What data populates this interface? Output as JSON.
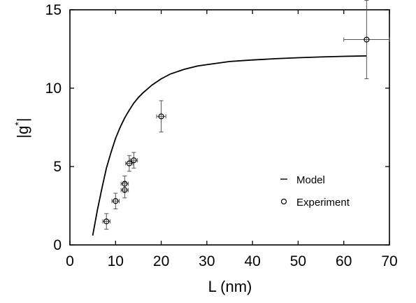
{
  "chart_data": {
    "type": "scatter",
    "xlabel": "L (nm)",
    "ylabel": "|g*|",
    "ylabel_parts": {
      "open": "|g",
      "sup": "*",
      "close": "|"
    },
    "xlim": [
      0,
      70
    ],
    "ylim": [
      0,
      15
    ],
    "xticks": [
      0,
      10,
      20,
      30,
      40,
      50,
      60,
      70
    ],
    "yticks": [
      0,
      5,
      10,
      15
    ],
    "grid": false,
    "legend_position": "lower-right",
    "series": [
      {
        "name": "Model",
        "kind": "line",
        "x": [
          5,
          6,
          7,
          8,
          9,
          10,
          11,
          12,
          13,
          14,
          15,
          16,
          18,
          20,
          22,
          25,
          28,
          30,
          35,
          40,
          45,
          50,
          55,
          60,
          65
        ],
        "y": [
          0.6,
          2.2,
          3.6,
          4.9,
          5.9,
          6.8,
          7.5,
          8.1,
          8.6,
          9.05,
          9.4,
          9.7,
          10.2,
          10.6,
          10.9,
          11.2,
          11.42,
          11.5,
          11.7,
          11.8,
          11.88,
          11.94,
          11.99,
          12.03,
          12.06
        ]
      },
      {
        "name": "Experiment",
        "kind": "points",
        "points": [
          {
            "x": 8,
            "y": 1.5,
            "xerr": 0.8,
            "yerr": 0.5
          },
          {
            "x": 10,
            "y": 2.8,
            "xerr": 0.8,
            "yerr": 0.5
          },
          {
            "x": 12,
            "y": 3.5,
            "xerr": 0.8,
            "yerr": 0.5
          },
          {
            "x": 12,
            "y": 3.9,
            "xerr": 0.8,
            "yerr": 0.5
          },
          {
            "x": 13,
            "y": 5.2,
            "xerr": 0.8,
            "yerr": 0.5
          },
          {
            "x": 14,
            "y": 5.4,
            "xerr": 0.8,
            "yerr": 0.5
          },
          {
            "x": 20,
            "y": 8.2,
            "xerr": 1.0,
            "yerr": 1.0
          },
          {
            "x": 65,
            "y": 13.1,
            "xerr": 5.0,
            "yerr": 2.5
          }
        ]
      }
    ]
  },
  "colors": {
    "axis": "#000000",
    "line": "#000000",
    "marker": "#000000",
    "errorbar": "#555555"
  }
}
